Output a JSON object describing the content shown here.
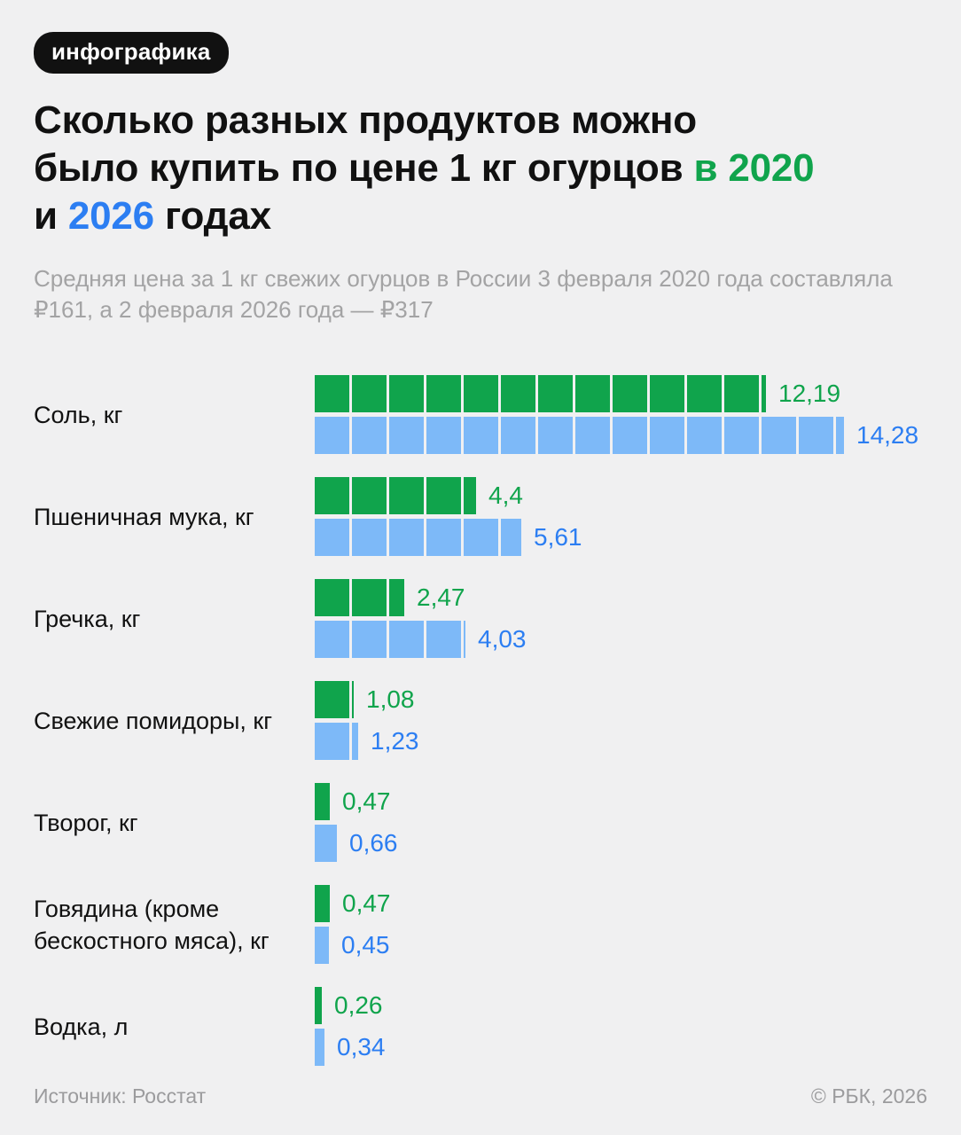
{
  "badge": {
    "label": "инфографика"
  },
  "title": {
    "lines": [
      [
        {
          "text": "Сколько разных продуктов можно",
          "color": "dark"
        }
      ],
      [
        {
          "text": "было купить по цене 1 кг огурцов ",
          "color": "dark"
        },
        {
          "text": "в 2020",
          "color": "green"
        }
      ],
      [
        {
          "text": "и ",
          "color": "dark"
        },
        {
          "text": "2026",
          "color": "blue"
        },
        {
          "text": " годах",
          "color": "dark"
        }
      ]
    ]
  },
  "subtitle": "Средняя цена за 1 кг свежих огурцов в России 3 февраля 2020 года составляла ₽161, а 2 февраля 2026 года — ₽317",
  "colors": {
    "background": "#f0f0f1",
    "green": "#10a44c",
    "blue_bar": "#7db9f8",
    "blue_text": "#2c7ef2",
    "badge_bg": "#111111",
    "subtitle_gray": "#a3a3a4"
  },
  "chart_data": {
    "type": "bar",
    "title": "Сколько разных продуктов можно было купить по цене 1 кг огурцов в 2020 и 2026 годах",
    "subtitle": "Средняя цена за 1 кг свежих огурцов в России 3 февраля 2020 года составляла ₽161, а 2 февраля 2026 года — ₽317",
    "orientation": "horizontal",
    "unit_note": "segmented bars, one block = 1 unit of product",
    "categories": [
      "Соль, кг",
      "Пшеничная мука, кг",
      "Гречка, кг",
      "Свежие помидоры, кг",
      "Творог, кг",
      "Говядина (кроме бескостного мяса), кг",
      "Водка, л"
    ],
    "series": [
      {
        "name": "2020",
        "bar_color": "#10a44c",
        "text_color": "#10a44c",
        "values": [
          12.19,
          4.4,
          2.47,
          1.08,
          0.47,
          0.47,
          0.26
        ],
        "labels": [
          "12,19",
          "4,4",
          "2,47",
          "1,08",
          "0,47",
          "0,47",
          "0,26"
        ]
      },
      {
        "name": "2026",
        "bar_color": "#7db9f8",
        "text_color": "#2c7ef2",
        "values": [
          14.28,
          5.61,
          4.03,
          1.23,
          0.66,
          0.45,
          0.34
        ],
        "labels": [
          "14,28",
          "5,61",
          "4,03",
          "1,23",
          "0,66",
          "0,45",
          "0,34"
        ]
      }
    ],
    "xlim": [
      0,
      15
    ],
    "legend_position": "in-title",
    "grid": false
  },
  "footer": {
    "source": "Источник: Росстат",
    "copyright": "© РБК, 2026"
  }
}
